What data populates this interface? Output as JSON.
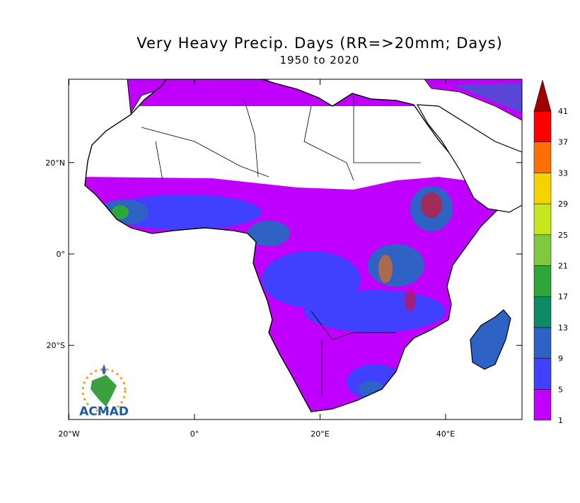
{
  "title": "Very Heavy Precip. Days (RR=>20mm; Days)",
  "subtitle": "1950 to 2020",
  "lat_ticks": [
    {
      "value": 20,
      "label": "20°N"
    },
    {
      "value": 0,
      "label": "0°"
    },
    {
      "value": -20,
      "label": "20°S"
    }
  ],
  "lon_ticks": [
    {
      "value": -20,
      "label": "20°W"
    },
    {
      "value": 0,
      "label": "0°"
    },
    {
      "value": 20,
      "label": "20°E"
    },
    {
      "value": 40,
      "label": "40°E"
    }
  ],
  "colorbar": {
    "levels": [
      1,
      5,
      9,
      13,
      17,
      21,
      25,
      29,
      33,
      37,
      41
    ],
    "colors": [
      "#c000ff",
      "#4040ff",
      "#2e62c4",
      "#0e8a66",
      "#2ea63a",
      "#80c840",
      "#c8e61e",
      "#f8d200",
      "#ff7000",
      "#ff0000"
    ],
    "over_color": "#a00000"
  },
  "logo": "ACMAD"
}
